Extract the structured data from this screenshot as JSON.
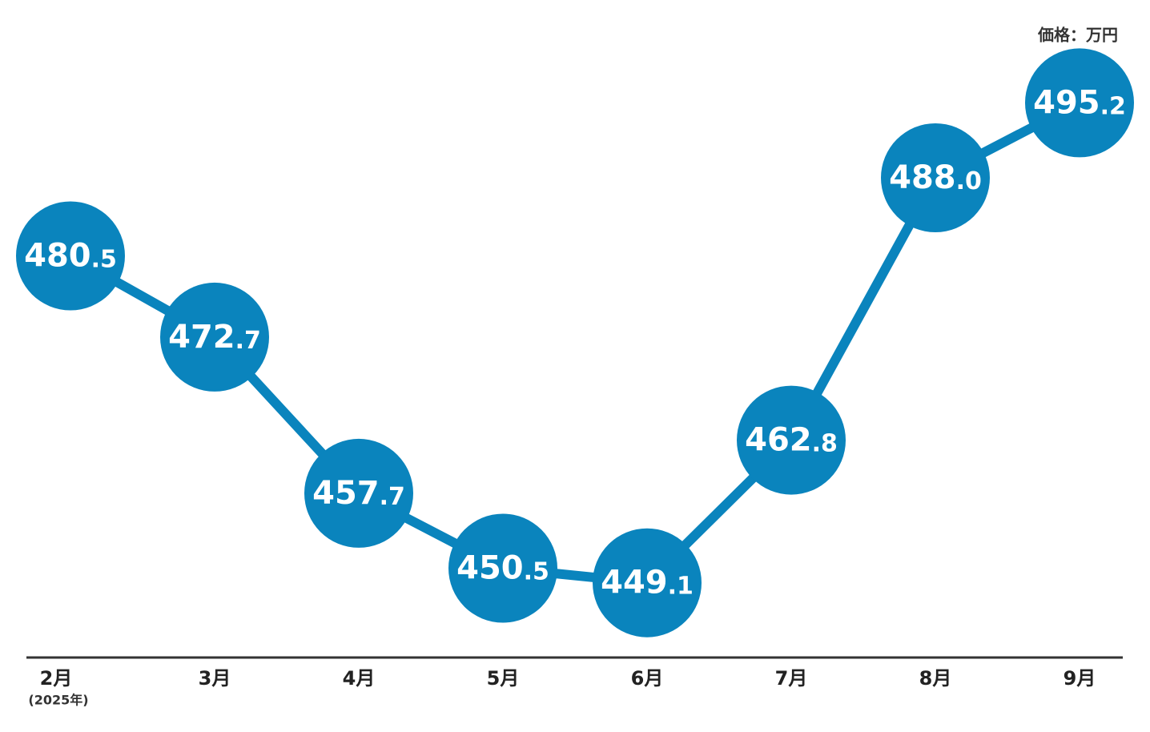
{
  "chart_data": {
    "type": "line",
    "y_label": "価格：万円",
    "x_note": "(2025年)",
    "categories": [
      "2月",
      "3月",
      "4月",
      "5月",
      "6月",
      "7月",
      "8月",
      "9月"
    ],
    "series": [
      {
        "name": "価格",
        "color": "#0a84bd",
        "values": [
          480.5,
          472.7,
          457.7,
          450.5,
          449.1,
          462.8,
          488.0,
          495.2
        ],
        "value_labels": [
          "480.5",
          "472.7",
          "457.7",
          "450.5",
          "449.1",
          "462.8",
          "488.0",
          "495.2"
        ]
      }
    ],
    "ylim": [
      442,
      502
    ]
  }
}
